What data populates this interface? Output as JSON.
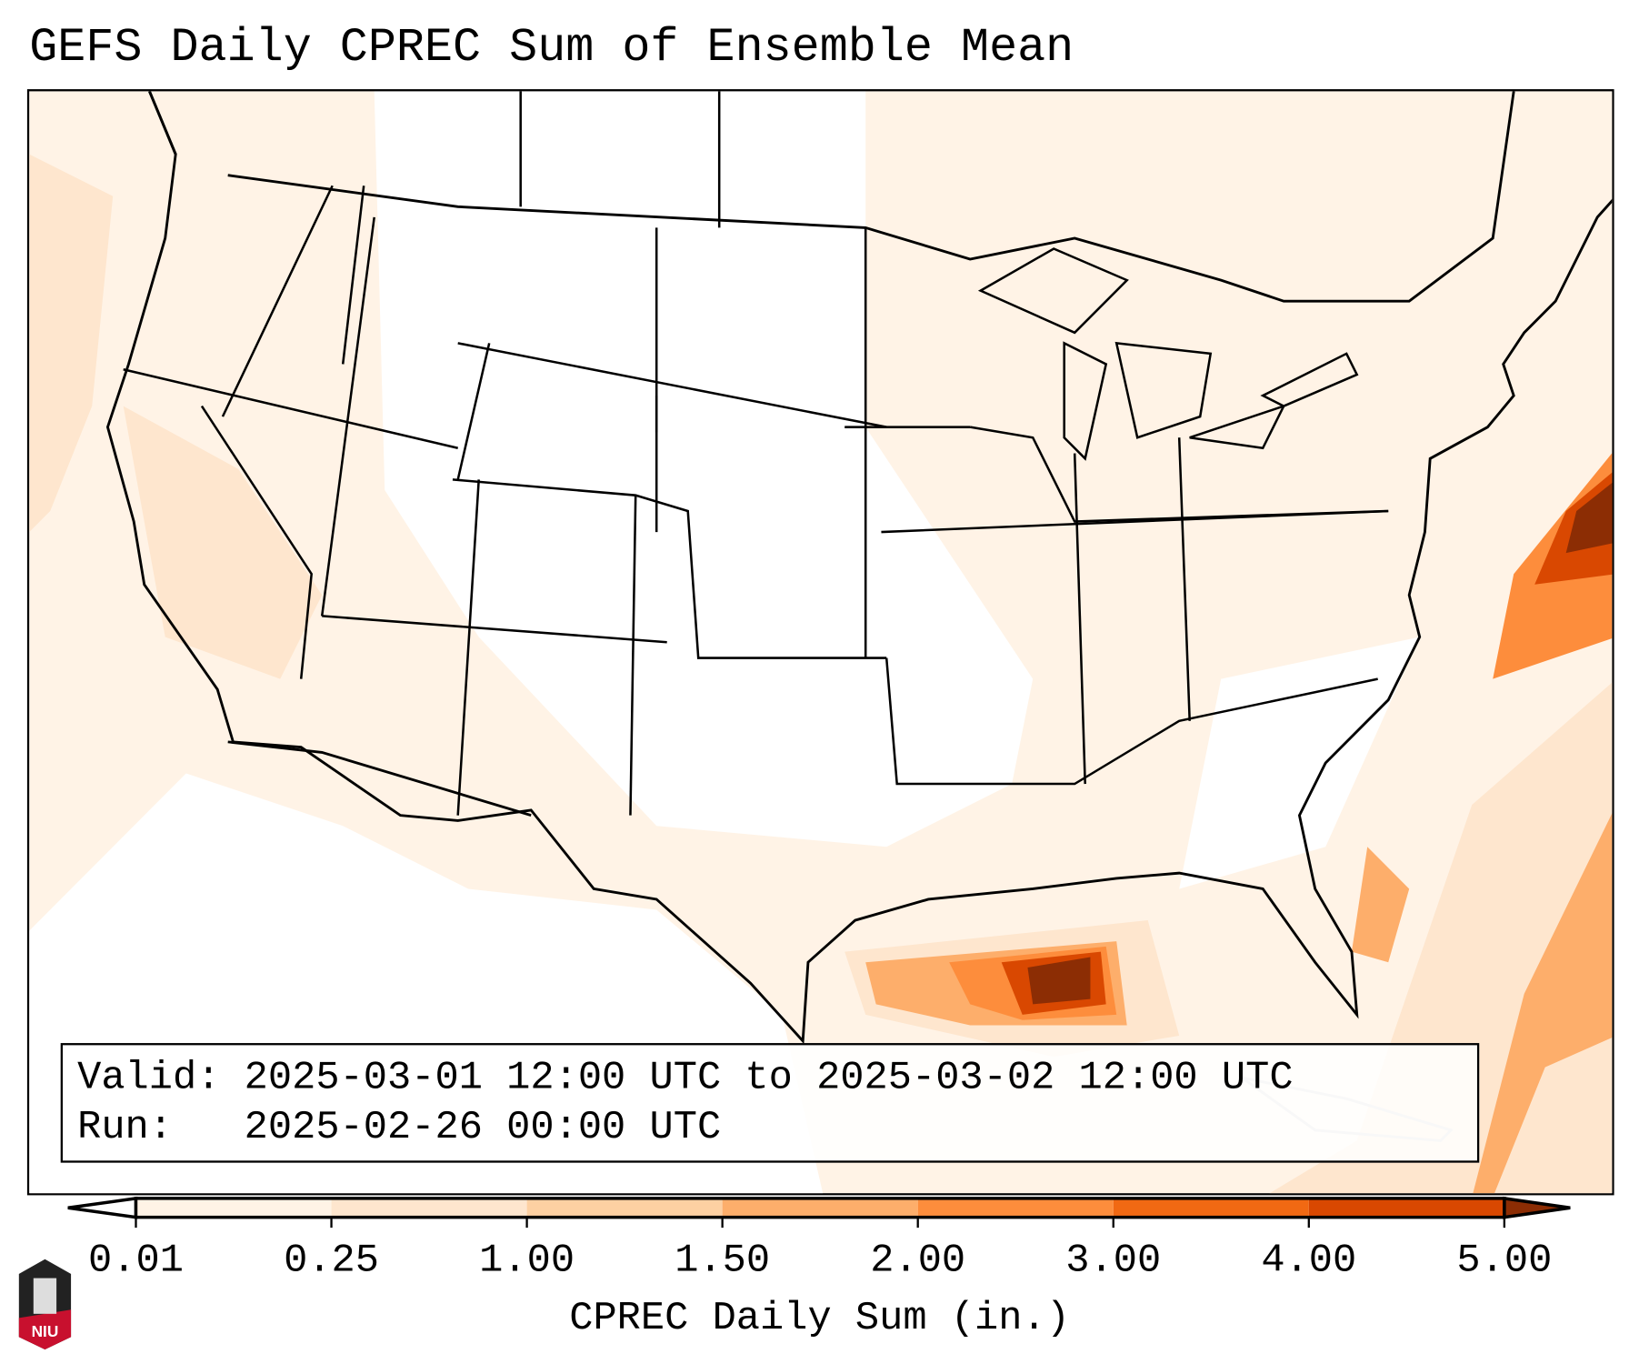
{
  "title": "GEFS Daily CPREC Sum of Ensemble Mean",
  "info": {
    "valid_label": "Valid:",
    "valid_text": "2025-03-01 12:00 UTC to 2025-03-02 12:00 UTC",
    "run_label": "Run:",
    "run_text": "2025-02-26 00:00 UTC"
  },
  "colorbar": {
    "label": "CPREC Daily Sum (in.)",
    "ticks": [
      "0.01",
      "0.25",
      "1.00",
      "1.50",
      "2.00",
      "3.00",
      "4.00",
      "5.00"
    ],
    "colors": [
      "#fff3e6",
      "#fee6ce",
      "#fdd0a2",
      "#fdae6b",
      "#fd8d3c",
      "#f16913",
      "#d94801"
    ],
    "under_color": "#ffffff",
    "over_color": "#8c2d04"
  },
  "logo": {
    "text": "NIU"
  }
}
